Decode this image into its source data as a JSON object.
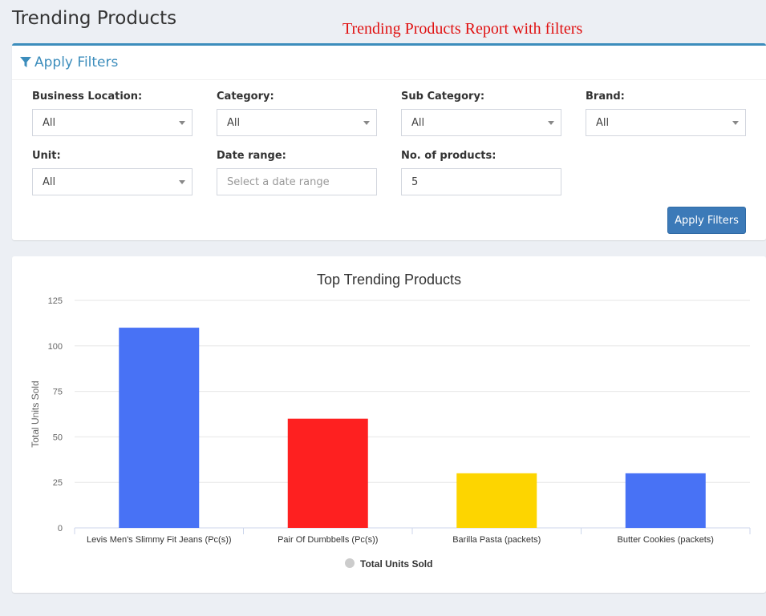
{
  "header": {
    "title": "Trending Products",
    "annotation": "Trending Products Report with filters"
  },
  "filters": {
    "title": "Apply Filters",
    "business_location": {
      "label": "Business Location:",
      "value": "All"
    },
    "category": {
      "label": "Category:",
      "value": "All"
    },
    "sub_category": {
      "label": "Sub Category:",
      "value": "All"
    },
    "brand": {
      "label": "Brand:",
      "value": "All"
    },
    "unit": {
      "label": "Unit:",
      "value": "All"
    },
    "date_range": {
      "label": "Date range:",
      "value": "",
      "placeholder": "Select a date range"
    },
    "num_products": {
      "label": "No. of products:",
      "value": "5"
    },
    "apply_label": "Apply Filters"
  },
  "colors": {
    "accent": "#3c8dbc",
    "button": "#3c7ab8"
  },
  "chart_data": {
    "type": "bar",
    "title": "Top Trending Products",
    "ylabel": "Total Units Sold",
    "xlabel": "",
    "categories": [
      "Levis Men's Slimmy Fit Jeans (Pc(s))",
      "Pair Of Dumbbells (Pc(s))",
      "Barilla Pasta (packets)",
      "Butter Cookies (packets)"
    ],
    "series": [
      {
        "name": "Total Units Sold",
        "values": [
          110,
          60,
          30,
          30
        ]
      }
    ],
    "bar_colors": [
      "#4872f5",
      "#fe2020",
      "#fdd500",
      "#4872f5"
    ],
    "ylim": [
      0,
      125
    ],
    "yticks": [
      0,
      25,
      50,
      75,
      100,
      125
    ],
    "grid": true,
    "legend": "bottom"
  }
}
